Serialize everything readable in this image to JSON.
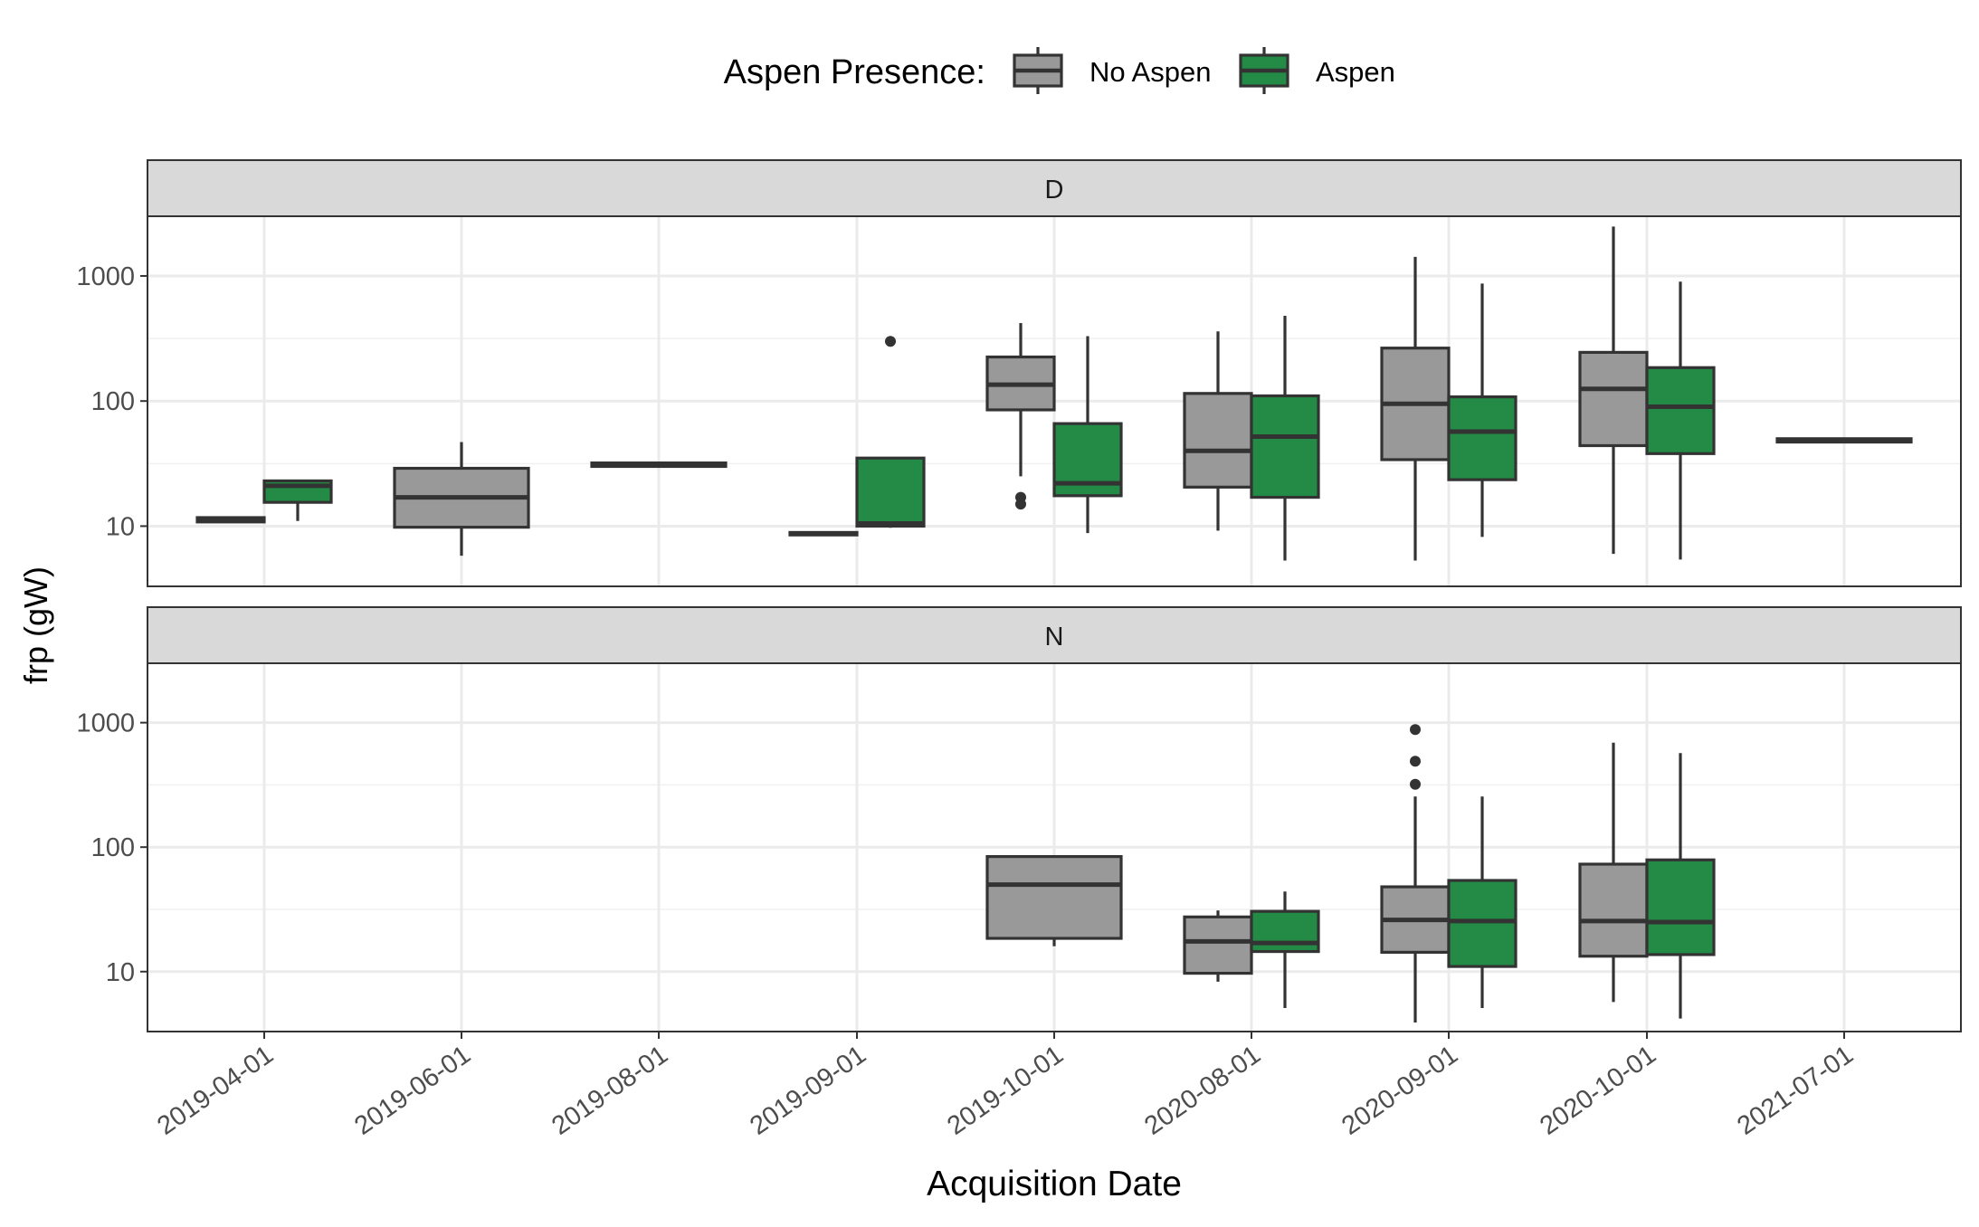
{
  "chart_data": {
    "type": "boxplot",
    "scale_y": "log10",
    "ylabel": "frp (gW)",
    "xlabel": "Acquisition Date",
    "y_ticks": [
      10,
      100,
      1000
    ],
    "y_tick_labels": [
      "10",
      "100",
      "1000"
    ],
    "ylim": [
      3.3,
      3000
    ],
    "legend": {
      "title": "Aspen Presence:",
      "position": "top",
      "entries": [
        {
          "key": "no_aspen",
          "label": "No Aspen",
          "color": "#999999"
        },
        {
          "key": "aspen",
          "label": "Aspen",
          "color": "#238b45"
        }
      ]
    },
    "categories": [
      "2019-04-01",
      "2019-06-01",
      "2019-08-01",
      "2019-09-01",
      "2019-10-01",
      "2020-08-01",
      "2020-09-01",
      "2020-10-01",
      "2021-07-01"
    ],
    "panels": [
      {
        "label": "D",
        "boxes": [
          {
            "category": "2019-04-01",
            "group": "no_aspen",
            "min": 10.8,
            "q1": 10.8,
            "median": 11.2,
            "q3": 11.7,
            "max": 11.9,
            "outliers": []
          },
          {
            "category": "2019-04-01",
            "group": "aspen",
            "min": 11,
            "q1": 15.5,
            "median": 21,
            "q3": 23,
            "max": 23.5,
            "outliers": []
          },
          {
            "category": "2019-06-01",
            "group": "no_aspen",
            "min": 5.8,
            "q1": 9.8,
            "median": 17,
            "q3": 29,
            "max": 47,
            "outliers": [],
            "full_width": true
          },
          {
            "category": "2019-08-01",
            "group": "no_aspen",
            "min": 30,
            "q1": 30,
            "median": 31,
            "q3": 32,
            "max": 32,
            "outliers": [],
            "full_width": true
          },
          {
            "category": "2019-09-01",
            "group": "no_aspen",
            "min": 8.5,
            "q1": 8.5,
            "median": 8.7,
            "q3": 8.9,
            "max": 8.9,
            "outliers": []
          },
          {
            "category": "2019-09-01",
            "group": "aspen",
            "min": 9.7,
            "q1": 10,
            "median": 10.5,
            "q3": 35,
            "max": 35,
            "outliers": [
              300
            ]
          },
          {
            "category": "2019-10-01",
            "group": "no_aspen",
            "min": 25,
            "q1": 85,
            "median": 135,
            "q3": 225,
            "max": 420,
            "outliers": [
              15,
              17
            ]
          },
          {
            "category": "2019-10-01",
            "group": "aspen",
            "min": 8.8,
            "q1": 17.5,
            "median": 22,
            "q3": 66,
            "max": 330,
            "outliers": []
          },
          {
            "category": "2020-08-01",
            "group": "no_aspen",
            "min": 9.2,
            "q1": 20.5,
            "median": 40,
            "q3": 115,
            "max": 360,
            "outliers": []
          },
          {
            "category": "2020-08-01",
            "group": "aspen",
            "min": 5.3,
            "q1": 17,
            "median": 52,
            "q3": 110,
            "max": 480,
            "outliers": []
          },
          {
            "category": "2020-09-01",
            "group": "no_aspen",
            "min": 5.3,
            "q1": 34,
            "median": 95,
            "q3": 265,
            "max": 1420,
            "outliers": []
          },
          {
            "category": "2020-09-01",
            "group": "aspen",
            "min": 8.2,
            "q1": 23.5,
            "median": 57,
            "q3": 108,
            "max": 870,
            "outliers": []
          },
          {
            "category": "2020-10-01",
            "group": "no_aspen",
            "min": 6,
            "q1": 44,
            "median": 125,
            "q3": 245,
            "max": 2480,
            "outliers": []
          },
          {
            "category": "2020-10-01",
            "group": "aspen",
            "min": 5.4,
            "q1": 38,
            "median": 90,
            "q3": 185,
            "max": 900,
            "outliers": []
          },
          {
            "category": "2021-07-01",
            "group": "no_aspen",
            "min": 47,
            "q1": 47,
            "median": 48.5,
            "q3": 50,
            "max": 50,
            "outliers": [],
            "full_width": true
          }
        ]
      },
      {
        "label": "N",
        "boxes": [
          {
            "category": "2019-10-01",
            "group": "no_aspen",
            "min": 16,
            "q1": 18.5,
            "median": 50,
            "q3": 84,
            "max": 84,
            "outliers": [],
            "full_width": true
          },
          {
            "category": "2020-08-01",
            "group": "no_aspen",
            "min": 8.3,
            "q1": 9.7,
            "median": 17.5,
            "q3": 27.5,
            "max": 31,
            "outliers": []
          },
          {
            "category": "2020-08-01",
            "group": "aspen",
            "min": 5.1,
            "q1": 14.5,
            "median": 17,
            "q3": 30.5,
            "max": 44,
            "outliers": []
          },
          {
            "category": "2020-09-01",
            "group": "no_aspen",
            "min": 3.9,
            "q1": 14.3,
            "median": 26,
            "q3": 48,
            "max": 255,
            "outliers": [
              320,
              490,
              880
            ]
          },
          {
            "category": "2020-09-01",
            "group": "aspen",
            "min": 5.1,
            "q1": 11,
            "median": 25.5,
            "q3": 54,
            "max": 255,
            "outliers": []
          },
          {
            "category": "2020-10-01",
            "group": "no_aspen",
            "min": 5.7,
            "q1": 13.3,
            "median": 25.5,
            "q3": 73,
            "max": 690,
            "outliers": []
          },
          {
            "category": "2020-10-01",
            "group": "aspen",
            "min": 4.2,
            "q1": 13.7,
            "median": 25,
            "q3": 79,
            "max": 570,
            "outliers": []
          }
        ]
      }
    ]
  }
}
